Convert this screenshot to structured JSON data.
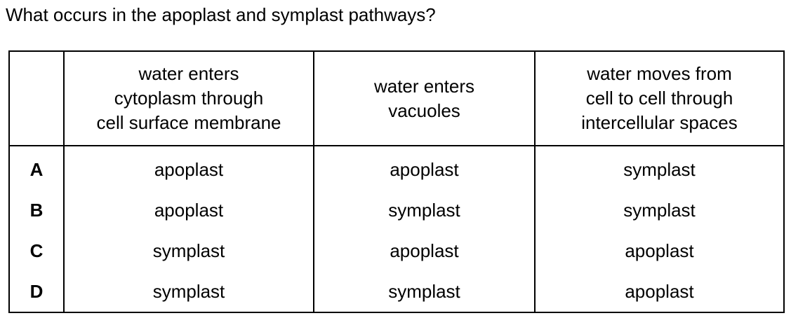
{
  "question": "What occurs in the apoplast and symplast pathways?",
  "table": {
    "columns": [
      [
        "water enters",
        "cytoplasm through",
        "cell surface membrane"
      ],
      [
        "water enters",
        "vacuoles"
      ],
      [
        "water moves from",
        "cell to cell through",
        "intercellular spaces"
      ]
    ],
    "rows": [
      {
        "option": "A",
        "values": [
          "apoplast",
          "apoplast",
          "symplast"
        ]
      },
      {
        "option": "B",
        "values": [
          "apoplast",
          "symplast",
          "symplast"
        ]
      },
      {
        "option": "C",
        "values": [
          "symplast",
          "apoplast",
          "apoplast"
        ]
      },
      {
        "option": "D",
        "values": [
          "symplast",
          "symplast",
          "apoplast"
        ]
      }
    ]
  }
}
